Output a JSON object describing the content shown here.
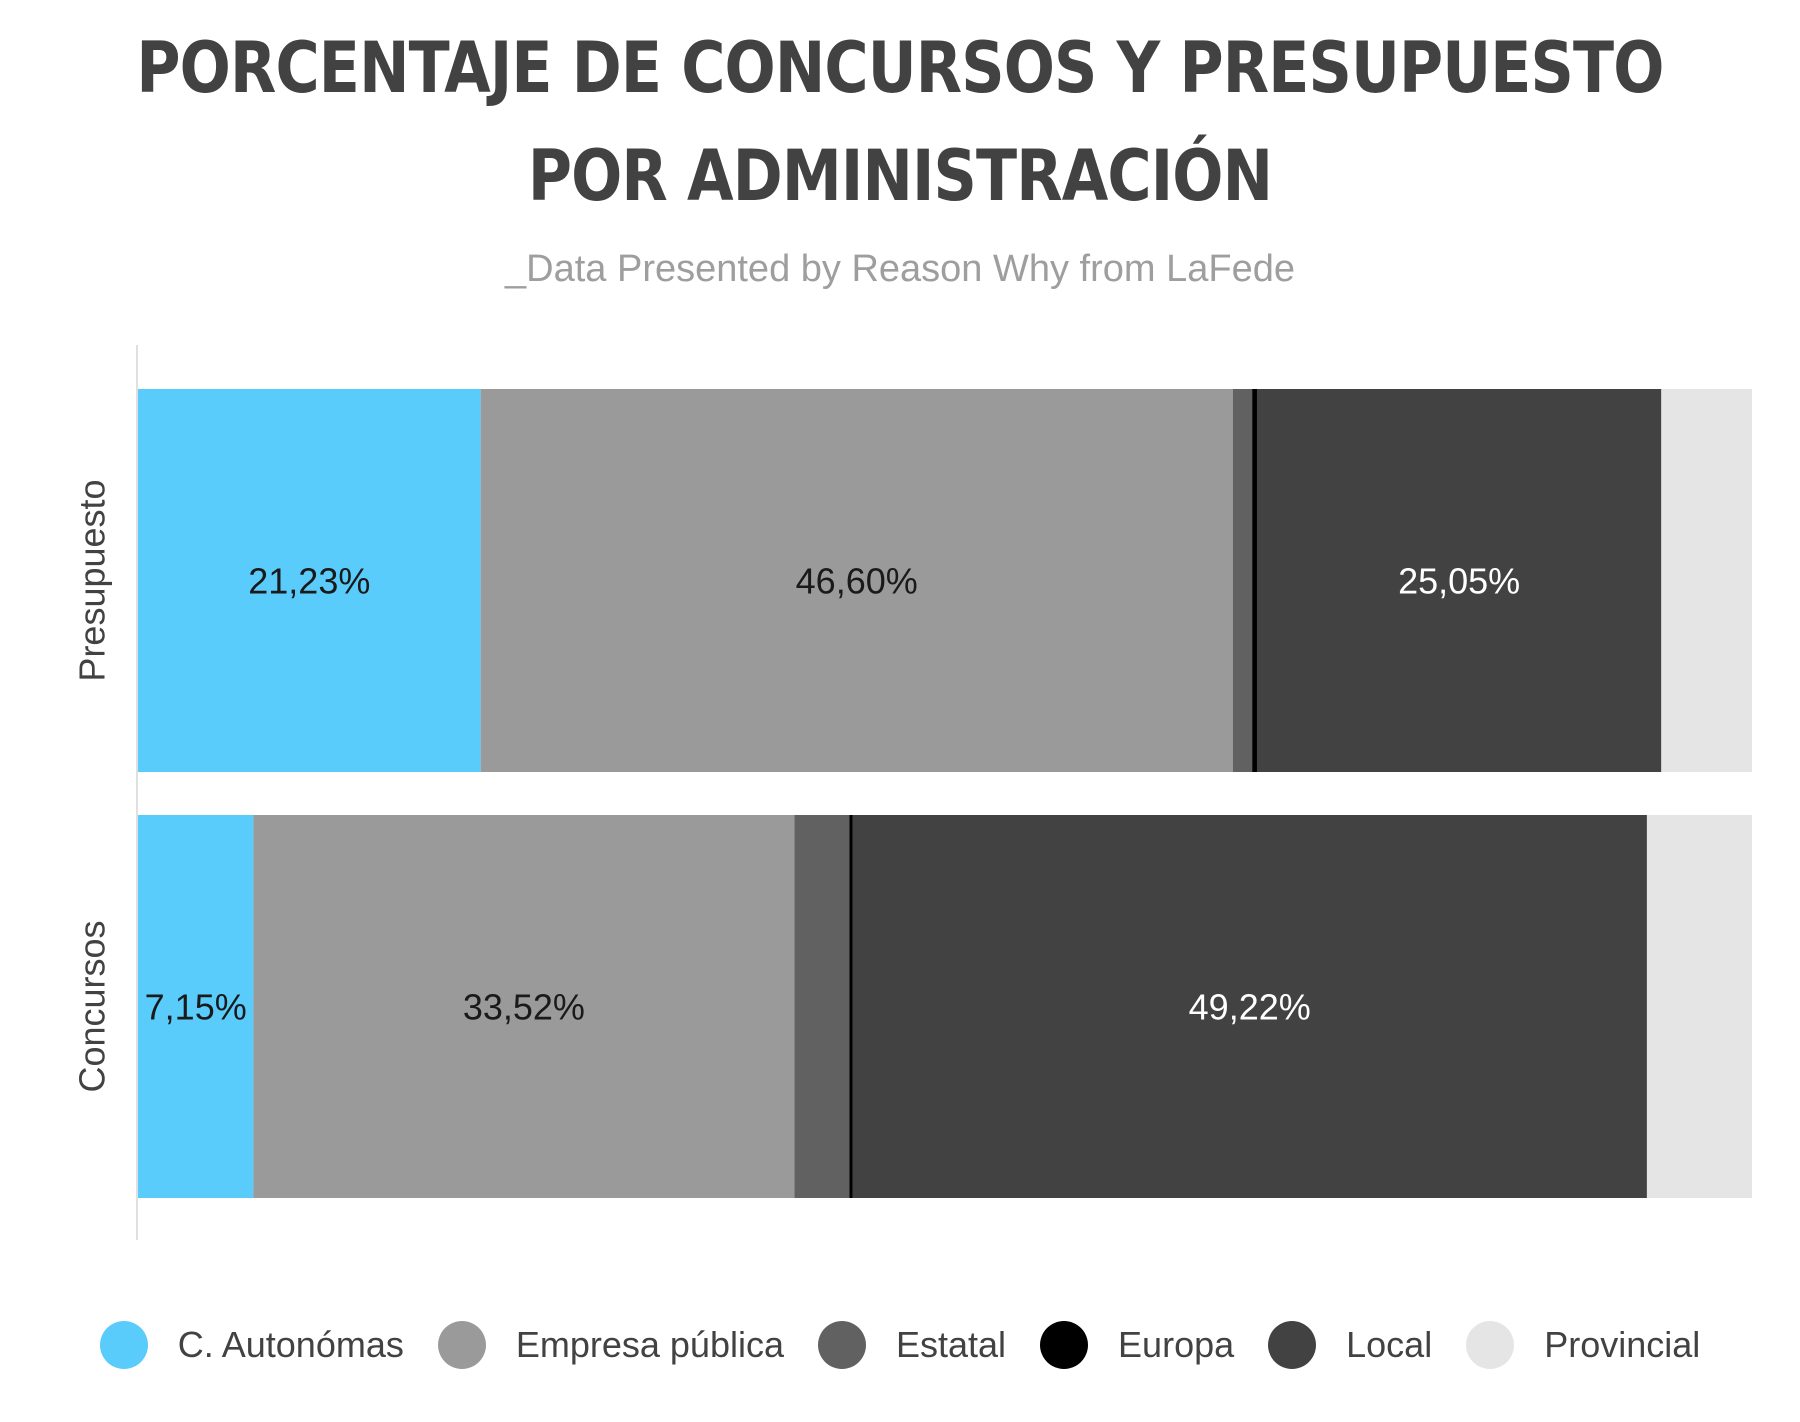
{
  "chart_data": {
    "type": "bar",
    "orientation": "horizontal",
    "stacked": true,
    "title_lines": [
      "PORCENTAJE DE CONCURSOS Y PRESUPUESTO",
      "POR ADMINISTRACIÓN"
    ],
    "subtitle": "_Data Presented by Reason Why from LaFede",
    "xlim": [
      0,
      100
    ],
    "grid": false,
    "legend_position": "bottom",
    "categories": [
      "Presupuesto",
      "Concursos"
    ],
    "series": [
      {
        "name": "C. Autonómas",
        "color": "#5accfc",
        "label_color": "#1a1a1a",
        "values": [
          21.23,
          7.15
        ],
        "labels": [
          "21,23%",
          "7,15%"
        ]
      },
      {
        "name": "Empresa pública",
        "color": "#9a9a9a",
        "label_color": "#1a1a1a",
        "values": [
          46.6,
          33.52
        ],
        "labels": [
          "46,60%",
          "33,52%"
        ]
      },
      {
        "name": "Estatal",
        "color": "#616161",
        "label_color": "#ffffff",
        "values": [
          1.2,
          3.4
        ],
        "labels": [
          "",
          ""
        ]
      },
      {
        "name": "Europa",
        "color": "#000000",
        "label_color": "#ffffff",
        "values": [
          0.3,
          0.2
        ],
        "labels": [
          "",
          ""
        ]
      },
      {
        "name": "Local",
        "color": "#424242",
        "label_color": "#ffffff",
        "values": [
          25.05,
          49.22
        ],
        "labels": [
          "25,05%",
          "49,22%"
        ]
      },
      {
        "name": "Provincial",
        "color": "#e5e5e5",
        "label_color": "#1a1a1a",
        "values": [
          5.62,
          6.51
        ],
        "labels": [
          "",
          ""
        ]
      }
    ]
  }
}
